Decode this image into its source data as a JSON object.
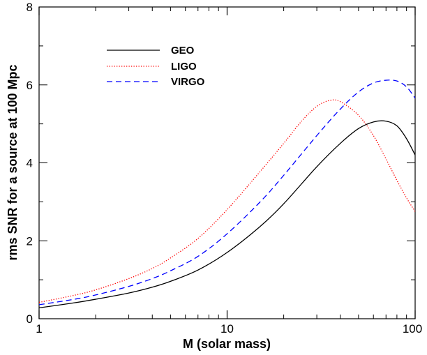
{
  "chart_data": {
    "type": "line",
    "title": "",
    "xlabel": "M (solar mass)",
    "ylabel": "rms SNR for a source at 100 Mpc",
    "xscale": "log",
    "xlim": [
      1,
      100
    ],
    "ylim": [
      0,
      8
    ],
    "xticks": [
      1,
      10,
      100
    ],
    "xtick_labels": [
      "1",
      "10",
      "100"
    ],
    "yticks": [
      0,
      2,
      4,
      6,
      8
    ],
    "ytick_labels": [
      "0",
      "2",
      "4",
      "6",
      "8"
    ],
    "grid": false,
    "legend_position": "top-left",
    "series": [
      {
        "name": "GEO",
        "color": "#000000",
        "style": "solid",
        "x": [
          1,
          1.5,
          2,
          3,
          4,
          5,
          7,
          10,
          15,
          20,
          30,
          40,
          50,
          60,
          70,
          80,
          90,
          100
        ],
        "y": [
          0.28,
          0.4,
          0.5,
          0.66,
          0.81,
          0.96,
          1.25,
          1.7,
          2.37,
          2.95,
          3.9,
          4.5,
          4.88,
          5.05,
          5.07,
          4.95,
          4.62,
          4.2
        ]
      },
      {
        "name": "LIGO",
        "color": "#ff0000",
        "style": "dotted",
        "x": [
          1,
          1.5,
          2,
          3,
          4,
          5,
          7,
          10,
          15,
          20,
          25,
          30,
          35,
          40,
          50,
          60,
          70,
          80,
          90,
          100
        ],
        "y": [
          0.42,
          0.59,
          0.74,
          1.03,
          1.29,
          1.56,
          2.06,
          2.8,
          3.78,
          4.5,
          5.08,
          5.45,
          5.6,
          5.57,
          5.22,
          4.7,
          4.1,
          3.55,
          3.1,
          2.75
        ]
      },
      {
        "name": "VIRGO",
        "color": "#0000ff",
        "style": "dashed",
        "x": [
          1,
          1.5,
          2,
          3,
          4,
          5,
          7,
          10,
          15,
          20,
          30,
          40,
          50,
          60,
          70,
          80,
          90,
          100
        ],
        "y": [
          0.36,
          0.49,
          0.61,
          0.83,
          1.03,
          1.23,
          1.6,
          2.18,
          3.0,
          3.68,
          4.7,
          5.38,
          5.82,
          6.05,
          6.12,
          6.1,
          5.95,
          5.66
        ]
      }
    ]
  }
}
